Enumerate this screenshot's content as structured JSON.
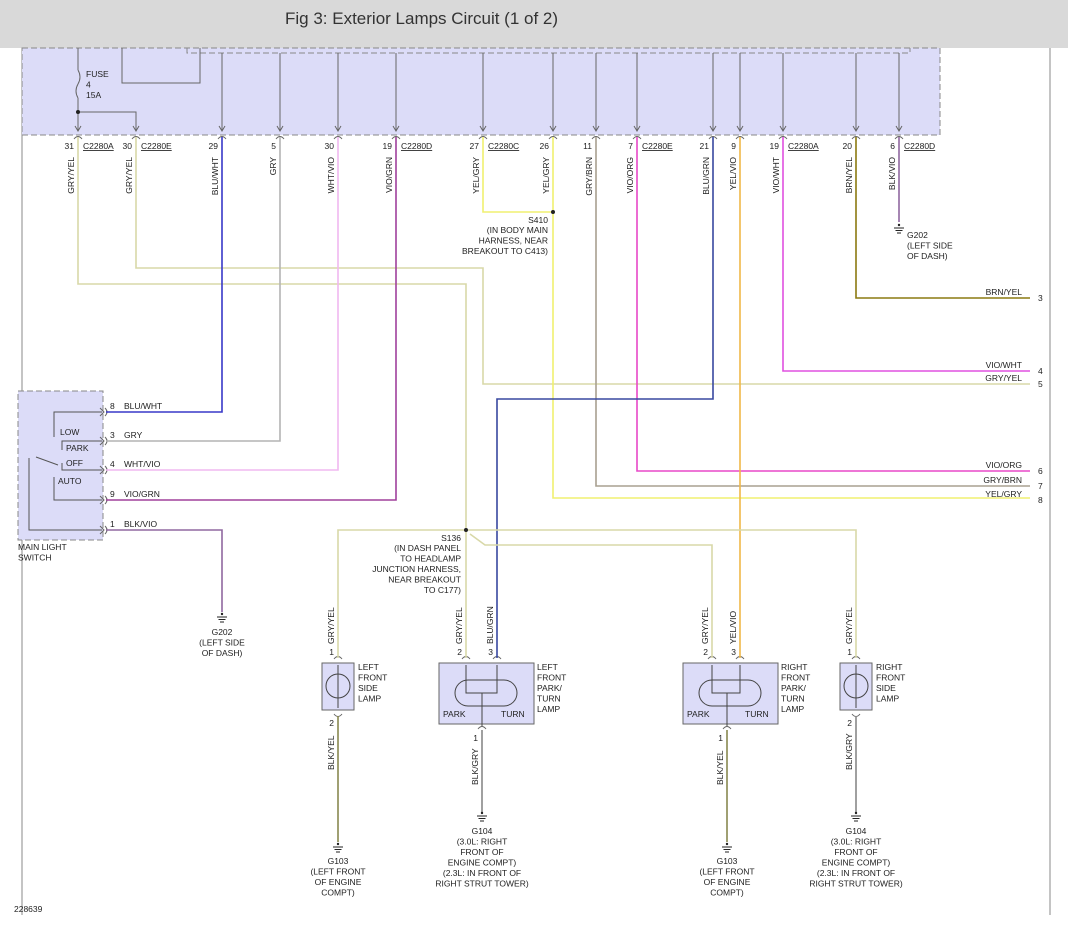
{
  "title": "Fig 3: Exterior Lamps Circuit (1 of 2)",
  "figure_id": "228639",
  "colors": {
    "module_fill": "#dcdcf8",
    "GRY/YEL": "#d8d8a8",
    "BLU/WHT": "#3838c8",
    "GRY": "#b4b4b4",
    "WHT/VIO": "#f0b8f0",
    "VIO/GRN": "#a0409c",
    "YEL/GRY": "#f0f070",
    "GRY/BRN": "#a8a090",
    "VIO/ORG": "#e848c8",
    "BLU/GRN": "#3848a0",
    "YEL/VIO": "#f0b848",
    "VIO/WHT": "#e050e0",
    "BRN/YEL": "#8c7a10",
    "BLK/VIO": "#9068a0",
    "BLK/YEL": "#888850",
    "BLK/GRY": "#888888"
  },
  "module": {
    "fuse": [
      "FUSE",
      "4",
      "15A"
    ],
    "pins": [
      {
        "pin": "31",
        "connector": "C2280A",
        "wire": "GRY/YEL"
      },
      {
        "pin": "30",
        "connector": "C2280E",
        "wire": "GRY/YEL"
      },
      {
        "pin": "29",
        "connector": "",
        "wire": "BLU/WHT"
      },
      {
        "pin": "5",
        "connector": "",
        "wire": "GRY"
      },
      {
        "pin": "30",
        "connector": "",
        "wire": "WHT/VIO"
      },
      {
        "pin": "19",
        "connector": "C2280D",
        "wire": "VIO/GRN"
      },
      {
        "pin": "27",
        "connector": "C2280C",
        "wire": "YEL/GRY"
      },
      {
        "pin": "26",
        "connector": "",
        "wire": "YEL/GRY"
      },
      {
        "pin": "11",
        "connector": "",
        "wire": "GRY/BRN"
      },
      {
        "pin": "7",
        "connector": "C2280E",
        "wire": "VIO/ORG"
      },
      {
        "pin": "21",
        "connector": "",
        "wire": "BLU/GRN"
      },
      {
        "pin": "9",
        "connector": "",
        "wire": "YEL/VIO"
      },
      {
        "pin": "19",
        "connector": "C2280A",
        "wire": "VIO/WHT"
      },
      {
        "pin": "20",
        "connector": "",
        "wire": "BRN/YEL"
      },
      {
        "pin": "6",
        "connector": "C2280D",
        "wire": "BLK/VIO"
      }
    ]
  },
  "right_pins": [
    {
      "num": "3",
      "wire": "BRN/YEL"
    },
    {
      "num": "4",
      "wire": "VIO/WHT"
    },
    {
      "num": "5",
      "wire": "GRY/YEL"
    },
    {
      "num": "6",
      "wire": "VIO/ORG"
    },
    {
      "num": "7",
      "wire": "GRY/BRN"
    },
    {
      "num": "8",
      "wire": "YEL/GRY"
    }
  ],
  "switch": {
    "name": [
      "MAIN LIGHT",
      "SWITCH"
    ],
    "positions": [
      "LOW",
      "PARK",
      "OFF",
      "AUTO"
    ],
    "pins": [
      {
        "num": "8",
        "wire": "BLU/WHT"
      },
      {
        "num": "3",
        "wire": "GRY"
      },
      {
        "num": "4",
        "wire": "WHT/VIO"
      },
      {
        "num": "9",
        "wire": "VIO/GRN"
      },
      {
        "num": "1",
        "wire": "BLK/VIO"
      }
    ]
  },
  "splices": {
    "s410": [
      "S410",
      "(IN BODY MAIN",
      "HARNESS, NEAR",
      "BREAKOUT TO C413)"
    ],
    "s136": [
      "S136",
      "(IN DASH PANEL",
      "TO HEADLAMP",
      "JUNCTION HARNESS,",
      "NEAR BREAKOUT",
      "TO C177)"
    ]
  },
  "grounds": {
    "g202_top": [
      "G202",
      "(LEFT SIDE",
      "OF DASH)"
    ],
    "g202_switch": [
      "G202",
      "(LEFT SIDE",
      "OF DASH)"
    ],
    "g103_left": [
      "G103",
      "(LEFT FRONT",
      "OF ENGINE",
      "COMPT)"
    ],
    "g104_left": [
      "G104",
      "(3.0L: RIGHT",
      "FRONT OF",
      "ENGINE COMPT)",
      "(2.3L: IN FRONT OF",
      "RIGHT STRUT TOWER)"
    ],
    "g103_right": [
      "G103",
      "(LEFT FRONT",
      "OF ENGINE",
      "COMPT)"
    ],
    "g104_right": [
      "G104",
      "(3.0L: RIGHT",
      "FRONT OF",
      "ENGINE COMPT)",
      "(2.3L: IN FRONT OF",
      "RIGHT STRUT TOWER)"
    ]
  },
  "lamps": {
    "left_side": {
      "name": [
        "LEFT",
        "FRONT",
        "SIDE",
        "LAMP"
      ],
      "top_pin": "1",
      "top_wire": "GRY/YEL",
      "bottom_pin": "2",
      "bottom_wire": "BLK/YEL"
    },
    "left_park": {
      "name": [
        "LEFT",
        "FRONT",
        "PARK/",
        "TURN",
        "LAMP"
      ],
      "park": "PARK",
      "turn": "TURN",
      "pin_park": "2",
      "wire_park": "GRY/YEL",
      "pin_turn": "3",
      "wire_turn": "BLU/GRN",
      "bottom_pin": "1",
      "bottom_wire": "BLK/GRY"
    },
    "right_park": {
      "name": [
        "RIGHT",
        "FRONT",
        "PARK/",
        "TURN",
        "LAMP"
      ],
      "park": "PARK",
      "turn": "TURN",
      "pin_park": "2",
      "wire_park": "GRY/YEL",
      "pin_turn": "3",
      "wire_turn": "YEL/VIO",
      "bottom_pin": "1",
      "bottom_wire": "BLK/YEL"
    },
    "right_side": {
      "name": [
        "RIGHT",
        "FRONT",
        "SIDE",
        "LAMP"
      ],
      "top_pin": "1",
      "top_wire": "GRY/YEL",
      "bottom_pin": "2",
      "bottom_wire": "BLK/GRY"
    }
  }
}
